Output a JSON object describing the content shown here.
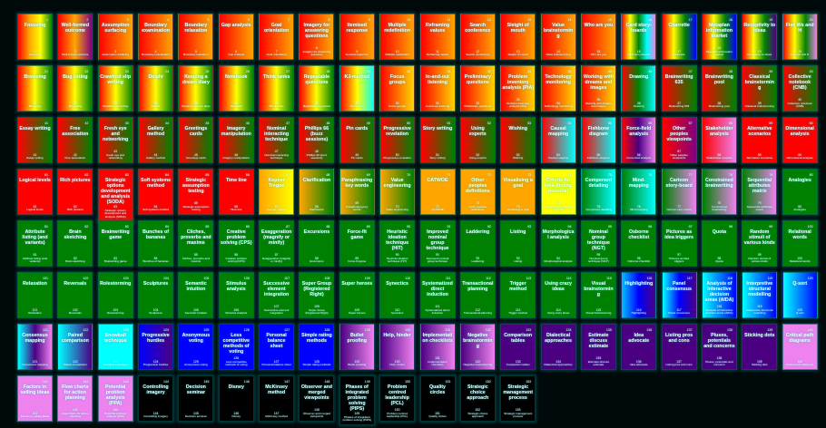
{
  "palettes": {
    "rog4": [
      "#ff0000",
      "#ffa500",
      "#ffff00",
      "#008000"
    ],
    "rop": [
      "#ff0000",
      "#ffa500",
      "#800080"
    ],
    "ro": [
      "#ff0000",
      "#ffa500"
    ],
    "rain": [
      "#ff0000",
      "#ffff00",
      "#008000",
      "#00ffff",
      "#ee82ee"
    ],
    "ryb": [
      "#ff0000",
      "#ffff00",
      "#008000",
      "#0000ff"
    ],
    "ryi": [
      "#ff0000",
      "#ffff00",
      "#008000",
      "#4b0082"
    ],
    "ryv": [
      "#ff0000",
      "#ffff00",
      "#008000",
      "#ee82ee"
    ],
    "ryg": [
      "#ff0000",
      "#ffff00",
      "#008000"
    ],
    "ryc": [
      "#ff0000",
      "#ffff00",
      "#00ffff"
    ],
    "ry": [
      "#ff0000",
      "#ffd700"
    ],
    "rgc": [
      "#ff0000",
      "#008000",
      "#00ffff"
    ],
    "rg": [
      "#ff0000",
      "#008000"
    ],
    "rc": [
      "#ff0000",
      "#00ffff"
    ],
    "rpv": [
      "#ff0000",
      "#4b0082",
      "#ee82ee"
    ],
    "rp": [
      "#ff0000",
      "#800080"
    ],
    "rv": [
      "#ff0000",
      "#ee82ee"
    ],
    "r": [
      "#ff0000",
      "#ff0000"
    ],
    "oy": [
      "#ffa500",
      "#ffff00"
    ],
    "og": [
      "#ffa500",
      "#008000"
    ],
    "o": [
      "#ffa500",
      "#ffa500"
    ],
    "y": [
      "#ffff00",
      "#ffff00"
    ],
    "gc": [
      "#008000",
      "#00ffff"
    ],
    "gv": [
      "#008000",
      "#ee82ee"
    ],
    "g": [
      "#008000",
      "#008000"
    ],
    "bi": [
      "#00bfff",
      "#0000ff",
      "#4b0082"
    ],
    "cbi": [
      "#00ffff",
      "#0000ff",
      "#4b0082"
    ],
    "cb": [
      "#00ffff",
      "#0000ff"
    ],
    "civ": [
      "#00ffff",
      "#4b0082",
      "#ee82ee"
    ],
    "ci": [
      "#00ffff",
      "#4b0082"
    ],
    "c": [
      "#00ffff",
      "#00ffff"
    ],
    "b2i": [
      "#0000ff",
      "#4b0082"
    ],
    "b": [
      "#0000ff",
      "#0000ff"
    ],
    "iv": [
      "#4b0082",
      "#ee82ee"
    ],
    "i": [
      "#4b0082",
      "#4b0082"
    ],
    "v": [
      "#ee82ee",
      "#ee82ee"
    ],
    "k": [
      "#000000",
      "#000000"
    ]
  },
  "cards": [
    [
      "1",
      "Focusing",
      "rog4"
    ],
    [
      "2",
      "Well-formed outcome",
      "rop"
    ],
    [
      "3",
      "Assumption surfacing",
      "ro"
    ],
    [
      "4",
      "Boundary examination",
      "ro"
    ],
    [
      "5",
      "Boundary relaxation",
      "ro"
    ],
    [
      "6",
      "Gap analysis",
      "ro"
    ],
    [
      "7",
      "Goal orientation",
      "ro"
    ],
    [
      "8",
      "Imagery for answering questions",
      "ro"
    ],
    [
      "9",
      "Itemised response",
      "ro"
    ],
    [
      "10",
      "Multiple redefinition",
      "ro"
    ],
    [
      "11",
      "Reframing values",
      "ro"
    ],
    [
      "12",
      "Search conference",
      "ro"
    ],
    [
      "13",
      "Sleight of mouth",
      "ro"
    ],
    [
      "14",
      "Value brainstorming",
      "ro"
    ],
    [
      "15",
      "Who are you",
      "ro"
    ],
    [
      "16",
      "Card story-boards",
      "rain"
    ],
    [
      "17",
      "Charrette",
      "ryb"
    ],
    [
      "18",
      "Metaplan information market",
      "ryb"
    ],
    [
      "19",
      "Receptivity to ideas",
      "ryi"
    ],
    [
      "20",
      "Five Ws and H",
      "ryv"
    ],
    [
      "21",
      "Browsing",
      "ryg"
    ],
    [
      "22",
      "Bug listing",
      "ryg"
    ],
    [
      "23",
      "Crawford slip writing",
      "ryg"
    ],
    [
      "24",
      "Delphi",
      "ryg"
    ],
    [
      "25",
      "Keeping a dream diary",
      "ryg"
    ],
    [
      "26",
      "Notebook",
      "ryg"
    ],
    [
      "27",
      "Think tanks",
      "ryg"
    ],
    [
      "28",
      "Repeatable questions",
      "ryg"
    ],
    [
      "29",
      "KJ-method",
      "ryc"
    ],
    [
      "30",
      "Focus groups",
      "ry"
    ],
    [
      "31",
      "In-and-out listening",
      "ry"
    ],
    [
      "32",
      "Preliminary questions",
      "ry"
    ],
    [
      "33",
      "Problem inventory analysis (PIA)",
      "ry"
    ],
    [
      "34",
      "Technology monitoring",
      "ry"
    ],
    [
      "35",
      "Working with dreams and images",
      "ry"
    ],
    [
      "36",
      "Drawing",
      "rgc"
    ],
    [
      "37",
      "Brainwriting 635",
      "rg"
    ],
    [
      "38",
      "Brainwriting pool",
      "rg"
    ],
    [
      "39",
      "Classical brainstorming",
      "rg"
    ],
    [
      "40",
      "Collective notebook (CNB)",
      "rg"
    ],
    [
      "41",
      "Essay writing",
      "rg"
    ],
    [
      "42",
      "Free association",
      "rg"
    ],
    [
      "43",
      "Fresh eye and networking",
      "rg"
    ],
    [
      "44",
      "Gallery method",
      "rg"
    ],
    [
      "45",
      "Greetings cards",
      "rg"
    ],
    [
      "46",
      "Imagery manipulation",
      "rg"
    ],
    [
      "47",
      "Nominal interacting technique",
      "rg"
    ],
    [
      "48",
      "Phillips 66 (buzz sessions)",
      "rg"
    ],
    [
      "49",
      "Pin cards",
      "rg"
    ],
    [
      "50",
      "Progressive revelation",
      "rg"
    ],
    [
      "51",
      "Story writing",
      "rg"
    ],
    [
      "52",
      "Using experts",
      "rg"
    ],
    [
      "53",
      "Wishing",
      "rg"
    ],
    [
      "54",
      "Causal mapping",
      "rc"
    ],
    [
      "55",
      "Fishbone diagram",
      "rc"
    ],
    [
      "56",
      "Force-field analysis",
      "rpv"
    ],
    [
      "57",
      "Other peoples viewpoints",
      "rp"
    ],
    [
      "58",
      "Stakeholder analysis",
      "rv"
    ],
    [
      "59",
      "Alternative scenarios",
      "r"
    ],
    [
      "60",
      "Dimensional analysis",
      "r"
    ],
    [
      "61",
      "Logical levels",
      "r"
    ],
    [
      "62",
      "Rich pictures",
      "r"
    ],
    [
      "63",
      "Strategic options development and analysis (SODA)",
      "r"
    ],
    [
      "64",
      "Soft systems method",
      "r"
    ],
    [
      "65",
      "Strategic assumption testing",
      "r"
    ],
    [
      "66",
      "Time line",
      "r"
    ],
    [
      "67",
      "Kepner Tregoe",
      "oy"
    ],
    [
      "68",
      "Clarification",
      "og"
    ],
    [
      "69",
      "Paraphrasing key words",
      "og"
    ],
    [
      "70",
      "Value engineering",
      "og"
    ],
    [
      "71",
      "CATWOE",
      "o"
    ],
    [
      "72",
      "Other peoples definitions",
      "o"
    ],
    [
      "73",
      "Visualising a goal",
      "o"
    ],
    [
      "74",
      "Criteria for idea-finding potential",
      "y"
    ],
    [
      "75",
      "Component detailing",
      "gc"
    ],
    [
      "76",
      "Mind-mapping",
      "gc"
    ],
    [
      "77",
      "Cartoon story-board",
      "gv"
    ],
    [
      "78",
      "Constrained brainwriting",
      "gv"
    ],
    [
      "79",
      "Sequential attributes matrix",
      "gv"
    ],
    [
      "80",
      "Analogies",
      "g"
    ],
    [
      "81",
      "Attribute listing (and variants)",
      "g"
    ],
    [
      "82",
      "Brain sketching",
      "g"
    ],
    [
      "83",
      "Brainwriting game",
      "g"
    ],
    [
      "84",
      "Bunches of bananas",
      "g"
    ],
    [
      "85",
      "Cliches, proverbs and maxims",
      "g"
    ],
    [
      "86",
      "Creative problem solving (CPS)",
      "g"
    ],
    [
      "87",
      "Exaggeration (magnify or minify)",
      "g"
    ],
    [
      "88",
      "Excursions",
      "g"
    ],
    [
      "89",
      "Force-fit game",
      "g"
    ],
    [
      "90",
      "Heuristic ideation technique (HIT)",
      "g"
    ],
    [
      "91",
      "Improved nominal group technique",
      "g"
    ],
    [
      "92",
      "Laddering",
      "g"
    ],
    [
      "93",
      "Listing",
      "g"
    ],
    [
      "94",
      "Morphological analysis",
      "g"
    ],
    [
      "95",
      "Nominal group technique (NGT)",
      "g"
    ],
    [
      "96",
      "Osborne checklist",
      "g"
    ],
    [
      "97",
      "Pictures as idea triggers",
      "g"
    ],
    [
      "98",
      "Quota",
      "g"
    ],
    [
      "99",
      "Random stimuli of various kinds",
      "g"
    ],
    [
      "100",
      "Relational words",
      "g"
    ],
    [
      "101",
      "Relaxation",
      "g"
    ],
    [
      "102",
      "Reversals",
      "g"
    ],
    [
      "103",
      "Rolestorming",
      "g"
    ],
    [
      "104",
      "Sculptures",
      "g"
    ],
    [
      "105",
      "Semantic intuition",
      "g"
    ],
    [
      "106",
      "Stimulus analysis",
      "g"
    ],
    [
      "107",
      "Successive element integration",
      "g"
    ],
    [
      "108",
      "Super Group (Registered Right)",
      "g"
    ],
    [
      "109",
      "Super heroes",
      "g"
    ],
    [
      "110",
      "Synectics",
      "g"
    ],
    [
      "111",
      "Systematized direct induction",
      "g"
    ],
    [
      "112",
      "Transactional planning",
      "g"
    ],
    [
      "113",
      "Trigger method",
      "g"
    ],
    [
      "114",
      "Using crazy ideas",
      "g"
    ],
    [
      "115",
      "Visual brainstorming",
      "g"
    ],
    [
      "116",
      "Highlighting",
      "bi"
    ],
    [
      "117",
      "Panel consensus",
      "cbi"
    ],
    [
      "118",
      "Analysis of interactive decision areas (AIDA)",
      "cb"
    ],
    [
      "119",
      "Interpretive structural modelling",
      "cb"
    ],
    [
      "120",
      "Q-sort",
      "cb"
    ],
    [
      "121",
      "Consensus mapping",
      "civ"
    ],
    [
      "122",
      "Paired comparison",
      "ci"
    ],
    [
      "123",
      "Snowball technique",
      "c"
    ],
    [
      "124",
      "Progressive hurdles",
      "b2i"
    ],
    [
      "125",
      "Anonymous voting",
      "b"
    ],
    [
      "126",
      "Less competitive methods of voting",
      "b"
    ],
    [
      "127",
      "Personal balance sheet",
      "b"
    ],
    [
      "128",
      "Simple rating methods",
      "b"
    ],
    [
      "129",
      "Bullet proofing",
      "iv"
    ],
    [
      "130",
      "Help, hinder",
      "iv"
    ],
    [
      "131",
      "Implementation checklists",
      "iv"
    ],
    [
      "132",
      "Negative brainstorming",
      "iv"
    ],
    [
      "133",
      "Comparison tables",
      "i"
    ],
    [
      "134",
      "Dialectical approaches",
      "i"
    ],
    [
      "135",
      "Estimate discuss estimate",
      "i"
    ],
    [
      "136",
      "Idea advocate",
      "i"
    ],
    [
      "137",
      "Listing pros and cons",
      "i"
    ],
    [
      "138",
      "Pluses, potentials and concerns",
      "i"
    ],
    [
      "139",
      "Sticking dots",
      "i"
    ],
    [
      "140",
      "Critical path diagrams",
      "v"
    ],
    [
      "141",
      "Factors in selling ideas",
      "v"
    ],
    [
      "142",
      "Flow charts for action planning",
      "v"
    ],
    [
      "143",
      "Potential problem analysis (PPA)",
      "v"
    ],
    [
      "144",
      "Controlling imagery",
      "k"
    ],
    [
      "145",
      "Decision seminar",
      "k"
    ],
    [
      "146",
      "Disney",
      "k"
    ],
    [
      "147",
      "McKinsey method",
      "k"
    ],
    [
      "148",
      "Observer and merged viewpoints",
      "k"
    ],
    [
      "149",
      "Phases of integrated problem solving (PIPS)",
      "k"
    ],
    [
      "150",
      "Problem centred leadership (PCL)",
      "k"
    ],
    [
      "151",
      "Quality circles",
      "k"
    ],
    [
      "152",
      "Strategic choice approach",
      "k"
    ],
    [
      "153",
      "Strategic management process",
      "k"
    ]
  ]
}
